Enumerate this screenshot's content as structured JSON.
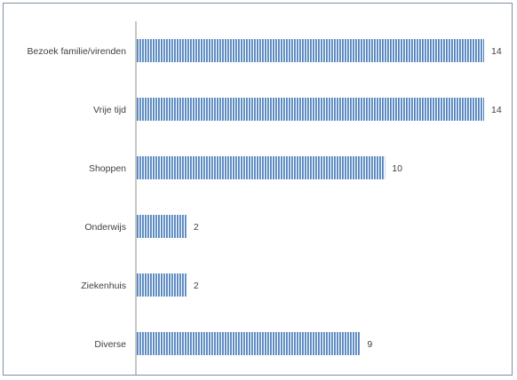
{
  "chart_data": {
    "type": "bar",
    "orientation": "horizontal",
    "categories": [
      "Bezoek familie/virenden",
      "Vrije tijd",
      "Shoppen",
      "Onderwijs",
      "Ziekenhuis",
      "Diverse"
    ],
    "values": [
      14,
      14,
      10,
      2,
      2,
      9
    ],
    "title": "",
    "xlabel": "",
    "ylabel": "",
    "xlim": [
      0,
      14
    ],
    "grid": false,
    "legend": "none",
    "data_labels": true,
    "bar_color": "#4f81bd",
    "bar_pattern": "vertical-stripes"
  }
}
